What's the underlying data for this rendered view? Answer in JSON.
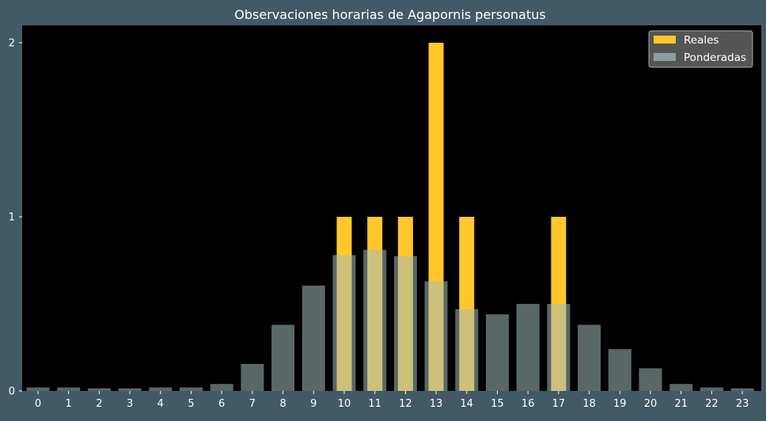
{
  "chart_data": {
    "type": "bar",
    "title": "Observaciones horarias de Agapornis personatus",
    "xlabel": "",
    "ylabel": "",
    "categories": [
      "0",
      "1",
      "2",
      "3",
      "4",
      "5",
      "6",
      "7",
      "8",
      "9",
      "10",
      "11",
      "12",
      "13",
      "14",
      "15",
      "16",
      "17",
      "18",
      "19",
      "20",
      "21",
      "22",
      "23"
    ],
    "series": [
      {
        "name": "Reales",
        "color": "#ffc72c",
        "values": [
          0,
          0,
          0,
          0,
          0,
          0,
          0,
          0,
          0,
          0,
          1,
          1,
          1,
          2,
          1,
          0,
          0,
          1,
          0,
          0,
          0,
          0,
          0,
          0
        ]
      },
      {
        "name": "Ponderadas",
        "color": "#a4bbbb",
        "opacity": 0.55,
        "values": [
          0.02,
          0.02,
          0.015,
          0.015,
          0.02,
          0.02,
          0.04,
          0.155,
          0.38,
          0.605,
          0.78,
          0.81,
          0.775,
          0.63,
          0.47,
          0.44,
          0.5,
          0.5,
          0.38,
          0.24,
          0.13,
          0.04,
          0.02,
          0.015
        ]
      }
    ],
    "yticks": [
      "0",
      "1",
      "2"
    ],
    "ylim": [
      0,
      2.1
    ],
    "grid": false,
    "legend": "top-right",
    "colors": {
      "background": "#425a66",
      "plot_area": "#000000",
      "text": "#ffffff",
      "legend_bg": "#555555",
      "legend_border": "#aaaaaa"
    }
  }
}
